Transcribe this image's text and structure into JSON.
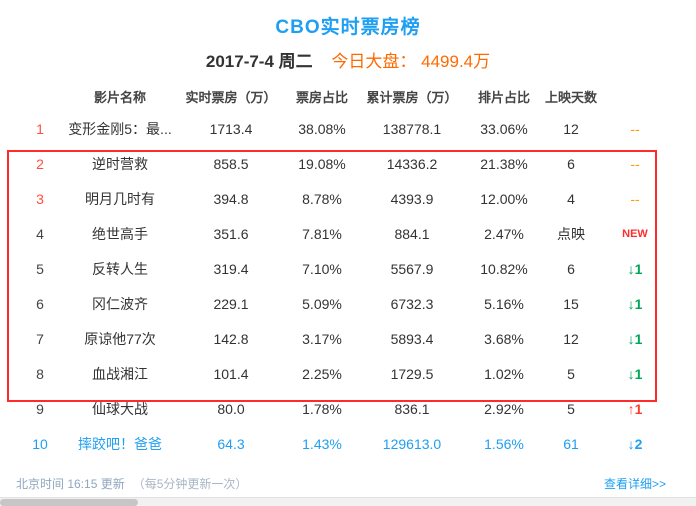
{
  "header": {
    "title": "CBO实时票房榜",
    "date": "2017-7-4 周二",
    "market_label": "今日大盘：",
    "market_value": "4499.4万"
  },
  "table": {
    "columns": [
      "影片名称",
      "实时票房（万）",
      "票房占比",
      "累计票房（万）",
      "排片占比",
      "上映天数"
    ],
    "rows": [
      {
        "rank": "1",
        "name": "变形金刚5：最...",
        "realtime": "1713.4",
        "share": "38.08%",
        "cumulative": "138778.1",
        "screening": "33.06%",
        "days": "12",
        "change": "--",
        "rank_tone": "red",
        "row_tone": "normal",
        "change_tone": "dash"
      },
      {
        "rank": "2",
        "name": "逆时营救",
        "realtime": "858.5",
        "share": "19.08%",
        "cumulative": "14336.2",
        "screening": "21.38%",
        "days": "6",
        "change": "--",
        "rank_tone": "red",
        "row_tone": "normal",
        "change_tone": "dash"
      },
      {
        "rank": "3",
        "name": "明月几时有",
        "realtime": "394.8",
        "share": "8.78%",
        "cumulative": "4393.9",
        "screening": "12.00%",
        "days": "4",
        "change": "--",
        "rank_tone": "red",
        "row_tone": "normal",
        "change_tone": "dash"
      },
      {
        "rank": "4",
        "name": "绝世高手",
        "realtime": "351.6",
        "share": "7.81%",
        "cumulative": "884.1",
        "screening": "2.47%",
        "days": "点映",
        "change": "NEW",
        "rank_tone": "dark",
        "row_tone": "normal",
        "change_tone": "new"
      },
      {
        "rank": "5",
        "name": "反转人生",
        "realtime": "319.4",
        "share": "7.10%",
        "cumulative": "5567.9",
        "screening": "10.82%",
        "days": "6",
        "change": "↓1",
        "rank_tone": "dark",
        "row_tone": "normal",
        "change_tone": "down"
      },
      {
        "rank": "6",
        "name": "冈仁波齐",
        "realtime": "229.1",
        "share": "5.09%",
        "cumulative": "6732.3",
        "screening": "5.16%",
        "days": "15",
        "change": "↓1",
        "rank_tone": "dark",
        "row_tone": "normal",
        "change_tone": "down"
      },
      {
        "rank": "7",
        "name": "原谅他77次",
        "realtime": "142.8",
        "share": "3.17%",
        "cumulative": "5893.4",
        "screening": "3.68%",
        "days": "12",
        "change": "↓1",
        "rank_tone": "dark",
        "row_tone": "normal",
        "change_tone": "down"
      },
      {
        "rank": "8",
        "name": "血战湘江",
        "realtime": "101.4",
        "share": "2.25%",
        "cumulative": "1729.5",
        "screening": "1.02%",
        "days": "5",
        "change": "↓1",
        "rank_tone": "dark",
        "row_tone": "normal",
        "change_tone": "down"
      },
      {
        "rank": "9",
        "name": "仙球大战",
        "realtime": "80.0",
        "share": "1.78%",
        "cumulative": "836.1",
        "screening": "2.92%",
        "days": "5",
        "change": "↑1",
        "rank_tone": "dark",
        "row_tone": "normal",
        "change_tone": "up"
      },
      {
        "rank": "10",
        "name": "摔跤吧！爸爸",
        "realtime": "64.3",
        "share": "1.43%",
        "cumulative": "129613.0",
        "screening": "1.56%",
        "days": "61",
        "change": "↓2",
        "rank_tone": "blue",
        "row_tone": "blue",
        "change_tone": "down"
      }
    ]
  },
  "footer": {
    "update_time": "北京时间 16:15 更新",
    "update_note": "（每5分钟更新一次）",
    "detail_link": "查看详细>>"
  },
  "colors": {
    "accent_blue": "#1e9ff2",
    "market_orange": "#ff6a00",
    "rank_red": "#ff4d40",
    "dash_orange": "#ff9a00",
    "down_green": "#00a65a",
    "up_red": "#ff3b30",
    "new_red": "#ff2d2d",
    "highlight_border": "#ff2b2b"
  }
}
